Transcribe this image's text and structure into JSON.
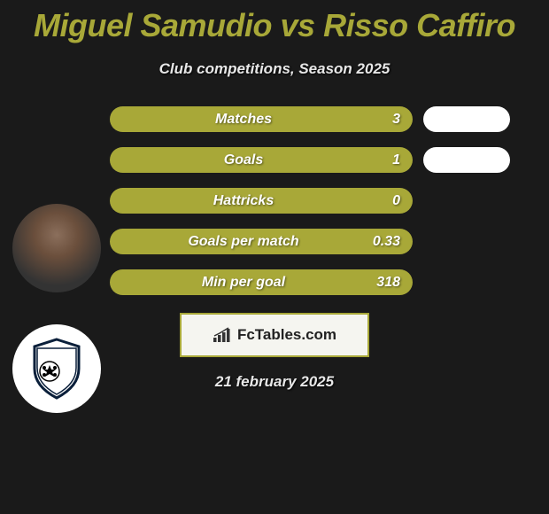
{
  "title": {
    "player1": "Miguel Samudio",
    "vs": "vs",
    "player2": "Risso Caffiro",
    "color": "#a8a838"
  },
  "subtitle": "Club competitions, Season 2025",
  "colors": {
    "bar_fill": "#a8a838",
    "bar_right": "#ffffff",
    "text": "#ffffff",
    "logo_border": "#a8a838",
    "background": "#1a1a1a"
  },
  "stats": [
    {
      "label": "Matches",
      "left_value": "3",
      "left_width": 342,
      "right_width": 98
    },
    {
      "label": "Goals",
      "left_value": "1",
      "left_width": 342,
      "right_width": 98
    },
    {
      "label": "Hattricks",
      "left_value": "0",
      "left_width": 342,
      "right_width": 0
    },
    {
      "label": "Goals per match",
      "left_value": "0.33",
      "left_width": 342,
      "right_width": 0
    },
    {
      "label": "Min per goal",
      "left_value": "318",
      "left_width": 342,
      "right_width": 0
    }
  ],
  "logo_text": "FcTables.com",
  "date": "21 february 2025"
}
